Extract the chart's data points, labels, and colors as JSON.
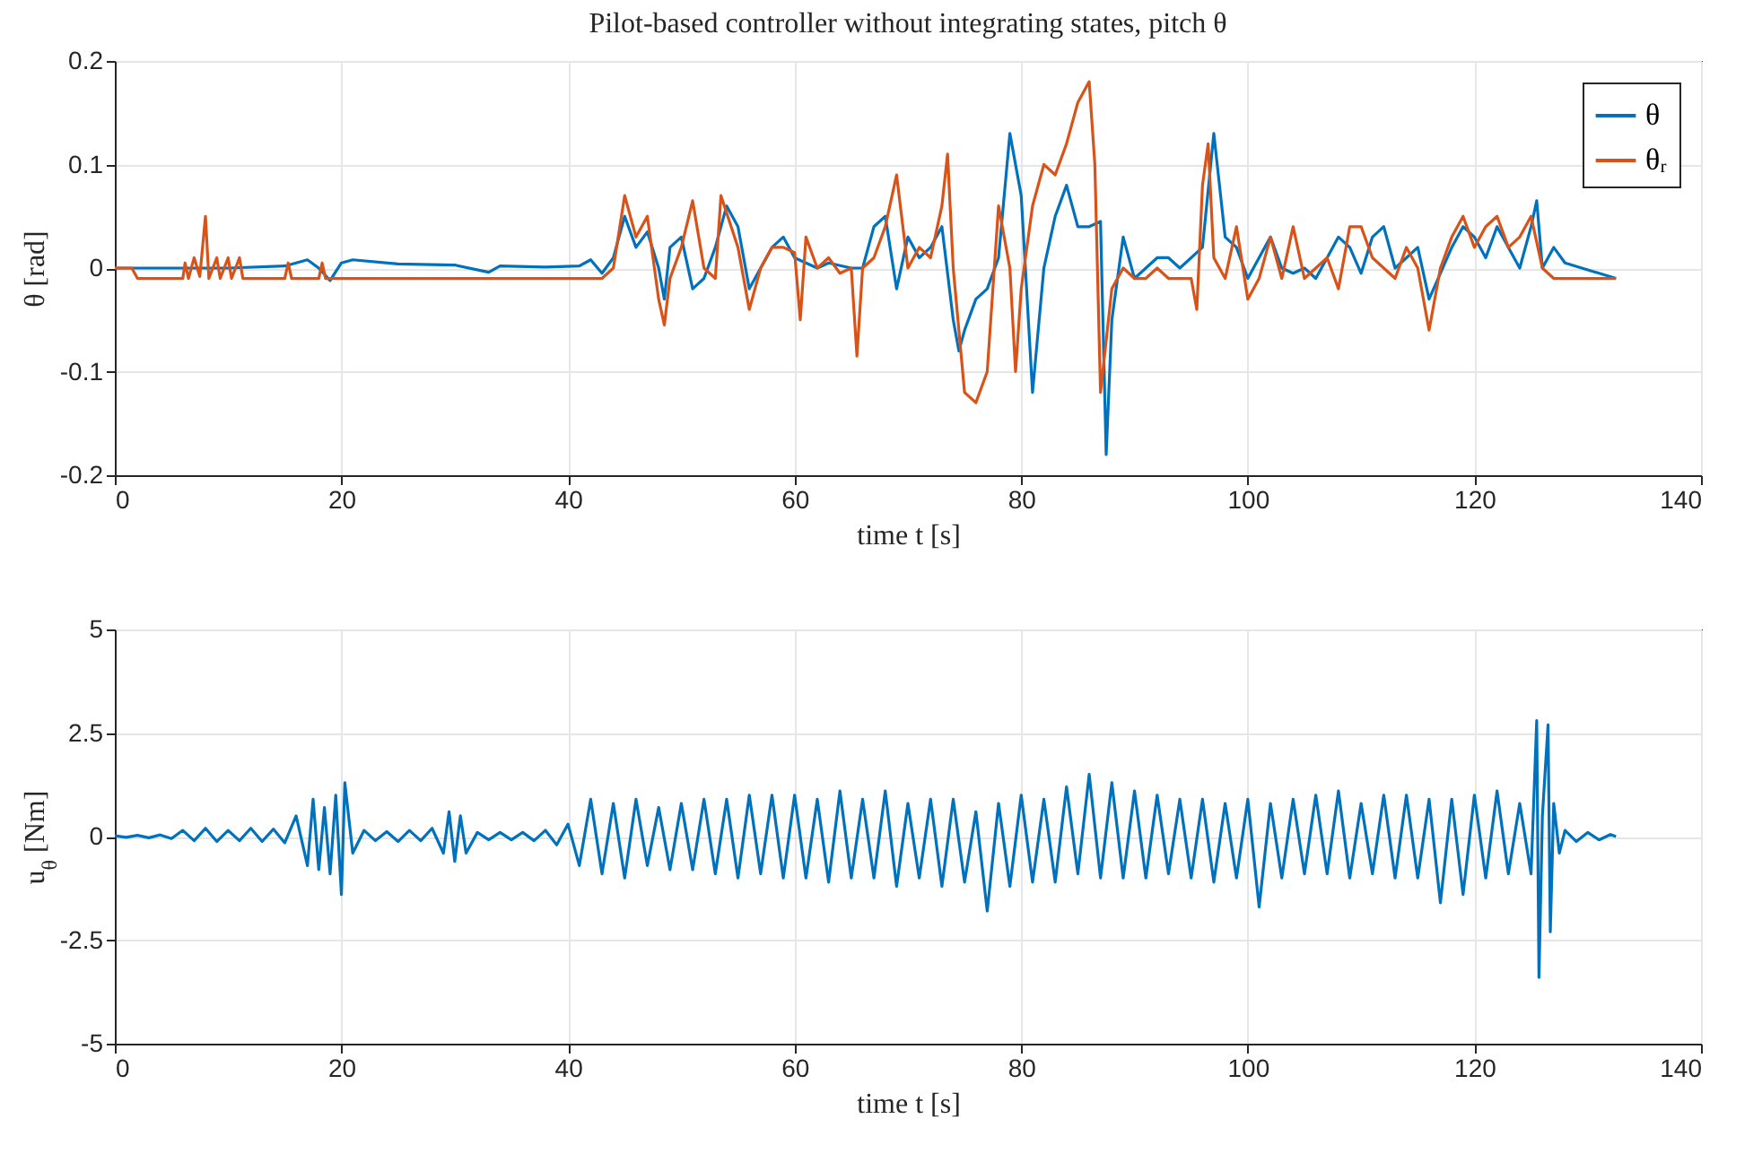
{
  "chart_data": [
    {
      "type": "line",
      "title": "Pilot-based controller without integrating states, pitch θ",
      "xlabel": "time t [s]",
      "ylabel": "θ [rad]",
      "xlim": [
        0,
        140
      ],
      "xticks": [
        0,
        20,
        40,
        60,
        80,
        100,
        120,
        140
      ],
      "ylim": [
        -0.2,
        0.2
      ],
      "yticks": [
        -0.2,
        -0.1,
        0,
        0.1,
        0.2
      ],
      "grid": true,
      "legend": "top right",
      "series": [
        {
          "name": "θ",
          "color": "#0072bd",
          "x": [
            0,
            5,
            10,
            15,
            17,
            18,
            19,
            20,
            21,
            25,
            30,
            33,
            34,
            38,
            41,
            42,
            43,
            44,
            45,
            46,
            47,
            48,
            48.5,
            49,
            50,
            51,
            52,
            53,
            54,
            55,
            56,
            57,
            58,
            59,
            60,
            62,
            63,
            65,
            66,
            67,
            68,
            69,
            70,
            71,
            72,
            73,
            74,
            74.5,
            75,
            76,
            77,
            78,
            79,
            80,
            81,
            82,
            83,
            84,
            85,
            86,
            87,
            87.5,
            88,
            89,
            90,
            91,
            92,
            93,
            94,
            96,
            97,
            98,
            99,
            100,
            102,
            103,
            104,
            105,
            106,
            107,
            108,
            109,
            110,
            111,
            112,
            113,
            114,
            115,
            116,
            117,
            118,
            119,
            120,
            121,
            122,
            123,
            124,
            125,
            125.5,
            126,
            127,
            128,
            132.5
          ],
          "values": [
            0,
            0,
            0,
            0.002,
            0.008,
            0,
            -0.012,
            0.005,
            0.008,
            0.004,
            0.003,
            -0.004,
            0.002,
            0.001,
            0.002,
            0.008,
            -0.005,
            0.01,
            0.05,
            0.02,
            0.035,
            0,
            -0.03,
            0.02,
            0.03,
            -0.02,
            -0.01,
            0.02,
            0.06,
            0.04,
            -0.02,
            0,
            0.02,
            0.03,
            0.01,
            0,
            0.005,
            0,
            0,
            0.04,
            0.05,
            -0.02,
            0.03,
            0.01,
            0.02,
            0.04,
            -0.05,
            -0.08,
            -0.06,
            -0.03,
            -0.02,
            0.01,
            0.13,
            0.07,
            -0.12,
            0,
            0.05,
            0.08,
            0.04,
            0.04,
            0.045,
            -0.18,
            -0.05,
            0.03,
            -0.01,
            0,
            0.01,
            0.01,
            0,
            0.02,
            0.13,
            0.03,
            0.02,
            -0.01,
            0.03,
            0,
            -0.005,
            0,
            -0.01,
            0.01,
            0.03,
            0.02,
            -0.005,
            0.03,
            0.04,
            0,
            0.01,
            0.02,
            -0.03,
            -0.005,
            0.02,
            0.04,
            0.03,
            0.01,
            0.04,
            0.02,
            0,
            0.04,
            0.065,
            0,
            0.02,
            0.005,
            -0.01
          ]
        },
        {
          "name": "θᵣ",
          "color": "#d95319",
          "x": [
            0,
            1.5,
            2,
            6,
            6.2,
            6.5,
            7,
            7.5,
            8,
            8.3,
            9,
            9.3,
            10,
            10.3,
            11,
            11.3,
            15,
            15.3,
            15.6,
            18,
            18.3,
            18.6,
            25,
            35,
            43,
            44,
            45,
            46,
            47,
            48,
            48.5,
            49,
            50,
            51,
            52,
            53,
            53.5,
            55,
            56,
            57,
            58,
            59,
            60,
            60.5,
            61,
            62,
            63,
            64,
            65,
            65.5,
            66,
            67,
            68,
            69,
            70,
            71,
            72,
            73,
            73.5,
            74,
            75,
            76,
            77,
            78,
            79,
            79.5,
            80,
            81,
            82,
            83,
            84,
            85,
            86,
            86.5,
            87,
            88,
            89,
            90,
            91,
            92,
            93,
            95,
            95.5,
            96,
            96.5,
            97,
            98,
            99,
            100,
            101,
            102,
            103,
            104,
            105,
            106,
            107,
            108,
            109,
            110,
            111,
            112,
            113,
            114,
            115,
            116,
            117,
            118,
            119,
            120,
            121,
            122,
            123,
            124,
            125,
            126,
            127,
            132.5
          ],
          "values": [
            0,
            0,
            -0.01,
            -0.01,
            0.005,
            -0.01,
            0.01,
            -0.008,
            0.05,
            -0.01,
            0.01,
            -0.01,
            0.01,
            -0.01,
            0.01,
            -0.01,
            -0.01,
            0.005,
            -0.01,
            -0.01,
            0.005,
            -0.01,
            -0.01,
            -0.01,
            -0.01,
            0,
            0.07,
            0.03,
            0.05,
            -0.03,
            -0.055,
            -0.01,
            0.02,
            0.065,
            0,
            -0.01,
            0.07,
            0.02,
            -0.04,
            0,
            0.02,
            0.02,
            0.015,
            -0.05,
            0.03,
            0,
            0.01,
            -0.005,
            0,
            -0.085,
            0,
            0.01,
            0.04,
            0.09,
            0,
            0.02,
            0.01,
            0.06,
            0.11,
            0,
            -0.12,
            -0.13,
            -0.1,
            0.06,
            0,
            -0.1,
            -0.02,
            0.06,
            0.1,
            0.09,
            0.12,
            0.16,
            0.18,
            0.1,
            -0.12,
            -0.02,
            0,
            -0.01,
            -0.01,
            0,
            -0.01,
            -0.01,
            -0.04,
            0.08,
            0.12,
            0.01,
            -0.01,
            0.04,
            -0.03,
            -0.01,
            0.03,
            -0.01,
            0.04,
            -0.01,
            0,
            0.01,
            -0.02,
            0.04,
            0.04,
            0.01,
            0,
            -0.01,
            0.02,
            0,
            -0.06,
            0,
            0.03,
            0.05,
            0.02,
            0.04,
            0.05,
            0.02,
            0.03,
            0.05,
            0,
            -0.01,
            -0.01
          ]
        }
      ]
    },
    {
      "type": "line",
      "xlabel": "time t [s]",
      "ylabel": "u$_{θ}$ [Nm]",
      "xlim": [
        0,
        140
      ],
      "xticks": [
        0,
        20,
        40,
        60,
        80,
        100,
        120,
        140
      ],
      "ylim": [
        -5,
        5
      ],
      "yticks": [
        -5,
        -2.5,
        0,
        2.5,
        5
      ],
      "grid": true,
      "series": [
        {
          "color": "#0072bd",
          "x": [
            0,
            1,
            2,
            3,
            4,
            5,
            6,
            7,
            8,
            9,
            10,
            11,
            12,
            13,
            14,
            15,
            16,
            17,
            17.5,
            18,
            18.5,
            19,
            19.5,
            20,
            20.3,
            21,
            22,
            23,
            24,
            25,
            26,
            27,
            28,
            29,
            29.5,
            30,
            30.5,
            31,
            32,
            33,
            34,
            35,
            36,
            37,
            38,
            39,
            40,
            41,
            42,
            43,
            44,
            45,
            46,
            47,
            48,
            49,
            50,
            51,
            52,
            53,
            54,
            55,
            56,
            57,
            58,
            59,
            60,
            61,
            62,
            63,
            64,
            65,
            66,
            67,
            68,
            69,
            70,
            71,
            72,
            73,
            74,
            75,
            76,
            77,
            78,
            79,
            80,
            81,
            82,
            83,
            84,
            85,
            86,
            87,
            88,
            89,
            90,
            91,
            92,
            93,
            94,
            95,
            96,
            97,
            98,
            99,
            100,
            101,
            102,
            103,
            104,
            105,
            106,
            107,
            108,
            109,
            110,
            111,
            112,
            113,
            114,
            115,
            116,
            117,
            118,
            119,
            120,
            121,
            122,
            123,
            124,
            125,
            125.5,
            125.7,
            126,
            126.5,
            126.7,
            127,
            127.5,
            128,
            129,
            130,
            131,
            132,
            132.5
          ],
          "values": [
            0.02,
            -0.02,
            0.03,
            -0.03,
            0.04,
            -0.05,
            0.15,
            -0.1,
            0.2,
            -0.12,
            0.15,
            -0.1,
            0.2,
            -0.12,
            0.18,
            -0.15,
            0.5,
            -0.7,
            0.9,
            -0.8,
            0.7,
            -0.9,
            1.0,
            -1.4,
            1.3,
            -0.4,
            0.15,
            -0.1,
            0.12,
            -0.12,
            0.15,
            -0.1,
            0.2,
            -0.4,
            0.6,
            -0.6,
            0.5,
            -0.4,
            0.1,
            -0.08,
            0.1,
            -0.08,
            0.1,
            -0.1,
            0.15,
            -0.2,
            0.3,
            -0.7,
            0.9,
            -0.9,
            0.8,
            -1.0,
            0.9,
            -0.7,
            0.7,
            -0.8,
            0.8,
            -0.8,
            0.9,
            -0.9,
            0.9,
            -1.0,
            1.0,
            -0.9,
            1.0,
            -1.0,
            1.0,
            -1.0,
            0.9,
            -1.1,
            1.1,
            -1.0,
            0.9,
            -1.0,
            1.1,
            -1.2,
            0.8,
            -1.0,
            0.9,
            -1.2,
            0.9,
            -1.1,
            0.6,
            -1.8,
            0.8,
            -1.2,
            1.0,
            -1.1,
            0.9,
            -1.1,
            1.2,
            -0.9,
            1.5,
            -1.0,
            1.3,
            -1.0,
            1.1,
            -1.0,
            1.0,
            -0.9,
            0.9,
            -1.0,
            0.9,
            -1.1,
            0.8,
            -1.0,
            0.9,
            -1.7,
            0.8,
            -1.0,
            0.9,
            -0.9,
            1.0,
            -0.9,
            1.1,
            -1.0,
            0.8,
            -0.9,
            1.0,
            -1.0,
            1.0,
            -1.0,
            0.9,
            -1.6,
            0.9,
            -1.4,
            1.0,
            -1.0,
            1.1,
            -0.9,
            0.8,
            -0.9,
            2.8,
            -3.4,
            0.5,
            2.7,
            -2.3,
            0.8,
            -0.4,
            0.15,
            -0.12,
            0.1,
            -0.08,
            0.05,
            0
          ]
        }
      ]
    }
  ]
}
